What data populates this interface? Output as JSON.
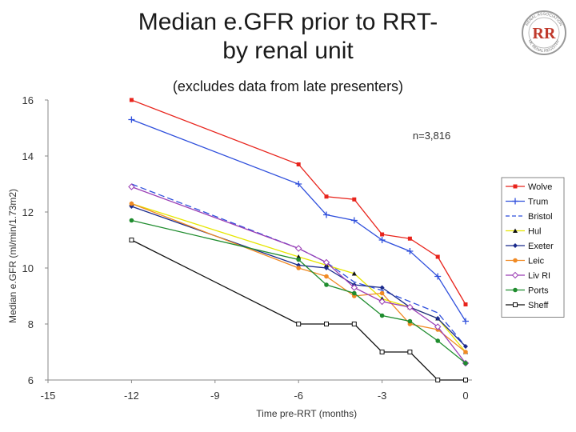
{
  "slide": {
    "title_line1": "Median e.GFR prior to RRT-",
    "title_line2": "by renal unit",
    "subtitle": "(excludes data from late presenters)",
    "logo_text": "RR",
    "logo_ring_text": "RENAL ASSOCIATION",
    "logo_ring_text_bottom": "UK RENAL REGISTRY",
    "logo_color": "#c0392b"
  },
  "chart_data": {
    "type": "line",
    "title": "Median e.GFR prior to RRT- by renal unit",
    "subtitle": "(excludes data from late presenters)",
    "xlabel": "Time pre-RRT (months)",
    "ylabel": "Median e.GFR (ml/min/1.73m2)",
    "xlim": [
      -15,
      0
    ],
    "ylim": [
      6,
      16
    ],
    "xticks": [
      "-15",
      "-12",
      "-9",
      "-6",
      "-3",
      "0"
    ],
    "yticks": [
      "6",
      "8",
      "10",
      "12",
      "14",
      "16"
    ],
    "annotation": "n=3,816",
    "legend_position": "right",
    "x": [
      -12,
      -6,
      -5,
      -4,
      -3,
      -2,
      -1,
      0
    ],
    "series": [
      {
        "name": "Wolve",
        "color": "#e8241c",
        "marker": "square-filled",
        "dash": "",
        "values": [
          16.0,
          13.7,
          12.55,
          12.45,
          11.2,
          11.05,
          10.4,
          8.7
        ]
      },
      {
        "name": "Trum",
        "color": "#2f4fdc",
        "marker": "plus",
        "dash": "",
        "values": [
          15.3,
          13.0,
          11.9,
          11.7,
          11.0,
          10.6,
          9.7,
          8.1
        ]
      },
      {
        "name": "Bristol",
        "color": "#2f4fdc",
        "marker": "none",
        "dash": "8,4",
        "values": [
          13.0,
          10.7,
          10.2,
          9.5,
          9.2,
          8.8,
          8.4,
          7.2
        ]
      },
      {
        "name": "Hul",
        "color": "#e6e600",
        "marker": "triangle",
        "dash": "",
        "values": [
          12.3,
          10.4,
          10.1,
          9.8,
          8.9,
          8.6,
          8.2,
          7.0
        ]
      },
      {
        "name": "Exeter",
        "color": "#1a2a8c",
        "marker": "diamond-filled",
        "dash": "",
        "values": [
          12.2,
          10.1,
          10.0,
          9.4,
          9.3,
          8.6,
          8.2,
          7.2
        ]
      },
      {
        "name": "Leic",
        "color": "#f08a24",
        "marker": "circle-filled",
        "dash": "",
        "values": [
          12.3,
          10.0,
          9.7,
          9.0,
          9.1,
          8.0,
          7.8,
          7.0
        ]
      },
      {
        "name": "Liv RI",
        "color": "#9b3fb5",
        "marker": "diamond-open",
        "dash": "",
        "values": [
          12.9,
          10.7,
          10.2,
          9.3,
          8.8,
          8.6,
          7.9,
          6.6
        ]
      },
      {
        "name": "Ports",
        "color": "#1f8c2e",
        "marker": "circle-filled",
        "dash": "",
        "values": [
          11.7,
          10.3,
          9.4,
          9.1,
          8.3,
          8.1,
          7.4,
          6.6
        ]
      },
      {
        "name": "Sheff",
        "color": "#111111",
        "marker": "square-open",
        "dash": "",
        "values": [
          11.0,
          8.0,
          8.0,
          8.0,
          7.0,
          7.0,
          6.0,
          6.0
        ]
      }
    ]
  }
}
